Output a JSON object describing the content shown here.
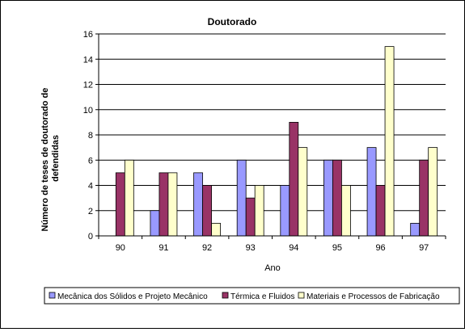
{
  "chart_data": {
    "type": "bar",
    "title": "Doutorado",
    "ylabel_lines": [
      "Número de teses de doutorado de",
      "defendidas"
    ],
    "xlabel": "Ano",
    "categories": [
      "90",
      "91",
      "92",
      "93",
      "94",
      "95",
      "96",
      "97"
    ],
    "ylim": [
      0,
      16
    ],
    "yticks": [
      "0",
      "2",
      "4",
      "6",
      "8",
      "10",
      "12",
      "14",
      "16"
    ],
    "grid": true,
    "legend_position": "bottom",
    "series": [
      {
        "name": "Mecânica dos Sólidos e Projeto Mecânico",
        "color": "#9999FF",
        "values": [
          0,
          2,
          5,
          6,
          4,
          6,
          7,
          1
        ]
      },
      {
        "name": "Térmica e Fluidos",
        "color": "#993366",
        "values": [
          5,
          5,
          4,
          3,
          9,
          6,
          4,
          6
        ]
      },
      {
        "name": "Materiais e Processos de Fabricação",
        "color": "#FFFFCC",
        "values": [
          6,
          5,
          1,
          4,
          7,
          4,
          15,
          7
        ]
      }
    ]
  }
}
